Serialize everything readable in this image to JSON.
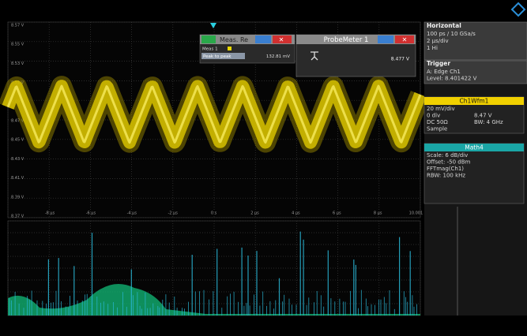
{
  "waveform": {
    "y_labels": [
      "8.57 V",
      "8.55 V",
      "8.53 V",
      "8.51 V",
      "8.49 V",
      "8.47 V",
      "8.45 V",
      "8.43 V",
      "8.41 V",
      "8.39 V",
      "8.37 V"
    ],
    "x_labels": [
      "-8 µs",
      "-6 µs",
      "-4 µs",
      "-2 µs",
      "0 s",
      "2 µs",
      "4 µs",
      "6 µs",
      "8 µs",
      "10.001 µs"
    ]
  },
  "meas_window": {
    "title": "Meas. Re",
    "row_label": "Meas 1",
    "measurement": "Peak to peak",
    "value": "132.81 mV"
  },
  "probe_meter": {
    "title": "ProbeMeter 1",
    "value": "8.477 V"
  },
  "side_panel": {
    "horizontal": {
      "title": "Horizontal",
      "lines": [
        "100 ps / 10 GSa/s",
        "2 µs/div",
        "1 Hi"
      ]
    },
    "trigger": {
      "title": "Trigger",
      "lines": [
        "A:  Edge  Ch1",
        "Level: 8.401422 V"
      ]
    },
    "ch1": {
      "title": "Ch1Wfm1",
      "left": [
        "20 mV/div",
        "0 div",
        "DC 50Ω",
        "Sample"
      ],
      "right": [
        "8.47 V",
        "BW: 4 GHz"
      ]
    },
    "math4": {
      "title": "Math4",
      "lines": [
        "Scale: 6 dB/div",
        "Offset: -50 dBm",
        "FFTmag(Ch1)",
        "RBW: 100 kHz"
      ]
    }
  }
}
